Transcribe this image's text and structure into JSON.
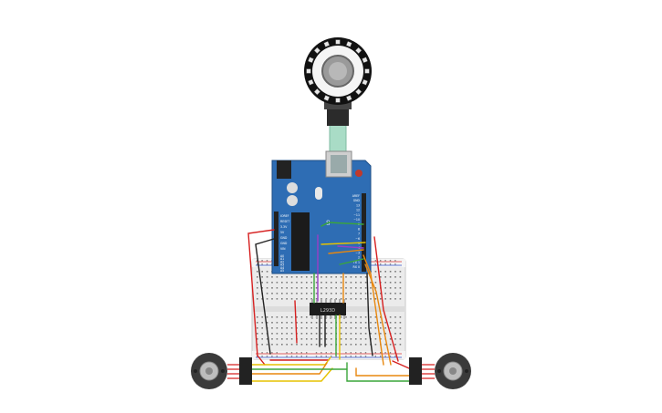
{
  "breadboard": {
    "rows_top": 2,
    "rows_bottom": 2,
    "columns": 30
  },
  "arduino": {
    "power_header": [
      "IOREF",
      "RESET",
      "3.3V",
      "5V",
      "GND",
      "GND",
      "VIN"
    ],
    "analog_header": [
      "A0",
      "A1",
      "A2",
      "A3",
      "A4",
      "A5"
    ],
    "digital_header": [
      "AREF",
      "GND",
      "13",
      "12",
      "~11",
      "~10",
      "~9",
      "8",
      "7",
      "~6",
      "~5",
      "4",
      "~3",
      "2",
      "TX 1",
      "RX 0"
    ]
  },
  "chip": {
    "label": "L293D"
  },
  "colors": {
    "board": "#2e6db4",
    "breadboard": "#e9e9e9",
    "wire_red": "#d62020",
    "wire_black": "#222222",
    "wire_yellow": "#e6c200",
    "wire_orange": "#e8870e",
    "wire_green": "#3aa63a",
    "wire_purple": "#9b3fc6",
    "wire_ribbon": "#9fd8c0"
  },
  "icons": [
    "arduino-board",
    "dc-motor",
    "encoder-ring",
    "usb-cable",
    "breadboard"
  ]
}
